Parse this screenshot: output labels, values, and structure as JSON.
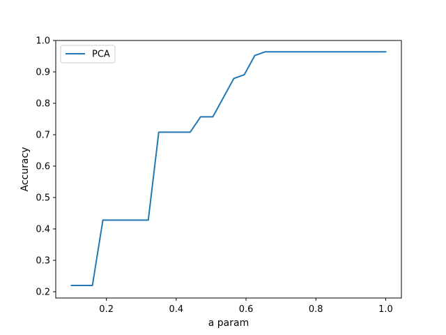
{
  "chart_data": {
    "type": "line",
    "title": "",
    "xlabel": "a param",
    "ylabel": "Accuracy",
    "xlim": [
      0.1,
      1.0
    ],
    "ylim": [
      0.2,
      1.0
    ],
    "xticks": [
      0.2,
      0.4,
      0.6,
      0.8,
      1.0
    ],
    "xtick_labels": [
      "0.2",
      "0.4",
      "0.6",
      "0.8",
      "1.0"
    ],
    "yticks": [
      0.2,
      0.3,
      0.4,
      0.5,
      0.6,
      0.7,
      0.8,
      0.9,
      1.0
    ],
    "ytick_labels": [
      "0.2",
      "0.3",
      "0.4",
      "0.5",
      "0.6",
      "0.7",
      "0.8",
      "0.9",
      "1.0"
    ],
    "grid": false,
    "legend_placement": "top-left",
    "series": [
      {
        "name": "PCA",
        "color": "#1f77b4",
        "x": [
          0.1,
          0.16,
          0.19,
          0.32,
          0.35,
          0.44,
          0.47,
          0.505,
          0.565,
          0.595,
          0.625,
          0.655,
          1.0
        ],
        "y": [
          0.22,
          0.22,
          0.428,
          0.428,
          0.708,
          0.708,
          0.757,
          0.757,
          0.879,
          0.891,
          0.952,
          0.964,
          0.964
        ]
      }
    ]
  }
}
